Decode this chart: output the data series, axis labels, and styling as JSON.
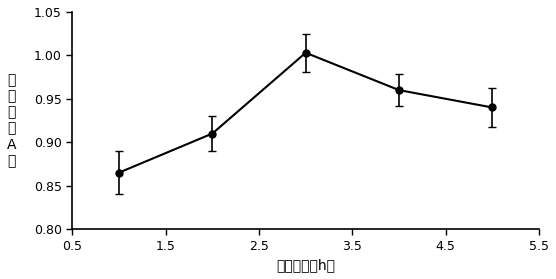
{
  "x": [
    1.0,
    2.0,
    3.0,
    4.0,
    5.0
  ],
  "y": [
    0.865,
    0.91,
    1.003,
    0.96,
    0.94
  ],
  "yerr": [
    0.025,
    0.02,
    0.022,
    0.018,
    0.022
  ],
  "xlim": [
    0.5,
    5.5
  ],
  "ylim": [
    0.8,
    1.05
  ],
  "xticks": [
    0.5,
    1.5,
    2.5,
    3.5,
    4.5,
    5.5
  ],
  "xtick_labels": [
    "0.5",
    "1.5",
    "2.5",
    "3.5",
    "4.5",
    "5.5"
  ],
  "yticks": [
    0.8,
    0.85,
    0.9,
    0.95,
    1.0,
    1.05
  ],
  "ytick_labels": [
    "0.80",
    "0.85",
    "0.90",
    "0.95",
    "1.00",
    "1.05"
  ],
  "xlabel": "反应时间（h）",
  "ylabel_chars": [
    "取",
    "代",
    "度",
    "（",
    "A",
    "）"
  ],
  "line_color": "#000000",
  "marker": "o",
  "marker_size": 5,
  "marker_facecolor": "#000000",
  "capsize": 3,
  "linewidth": 1.5,
  "elinewidth": 1.2,
  "figsize": [
    5.56,
    2.79
  ],
  "dpi": 100
}
